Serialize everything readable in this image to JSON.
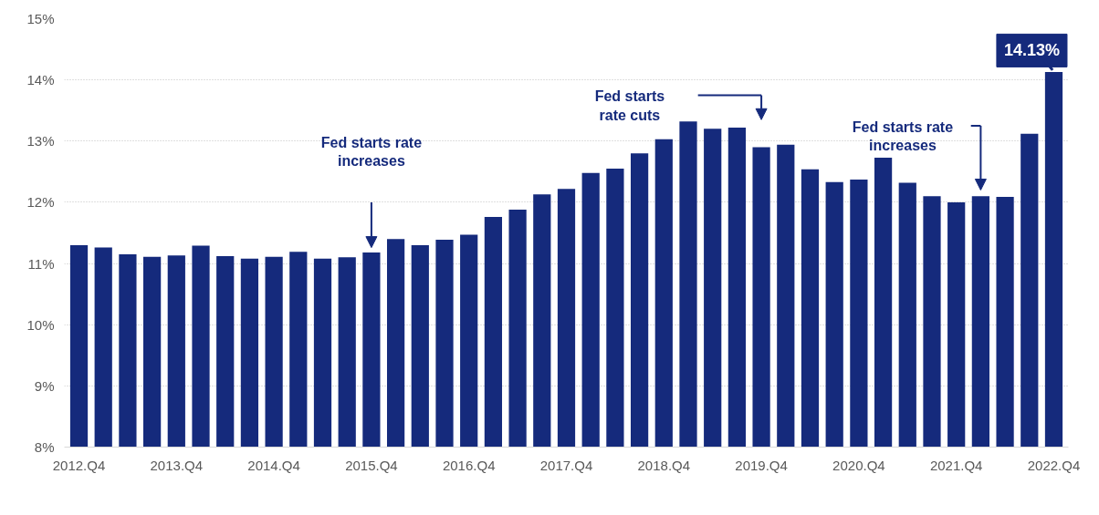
{
  "chart_data": {
    "type": "bar",
    "categories": [
      "2012.Q4",
      null,
      null,
      null,
      "2013.Q4",
      null,
      null,
      null,
      "2014.Q4",
      null,
      null,
      null,
      "2015.Q4",
      null,
      null,
      null,
      "2016.Q4",
      null,
      null,
      null,
      "2017.Q4",
      null,
      null,
      null,
      "2018.Q4",
      null,
      null,
      null,
      "2019.Q4",
      null,
      null,
      null,
      "2020.Q4",
      null,
      null,
      null,
      "2021.Q4",
      null,
      null,
      null,
      "2022.Q4"
    ],
    "values": [
      11.3,
      11.26,
      11.15,
      11.11,
      11.13,
      11.29,
      11.12,
      11.08,
      11.11,
      11.19,
      11.08,
      11.1,
      11.18,
      11.4,
      11.3,
      11.39,
      11.47,
      11.76,
      11.88,
      12.13,
      12.22,
      12.48,
      12.55,
      12.8,
      13.03,
      13.32,
      13.2,
      13.22,
      12.9,
      12.94,
      12.54,
      12.33,
      12.37,
      12.73,
      12.32,
      12.1,
      12.0,
      12.1,
      12.09,
      13.12,
      14.13
    ],
    "color": "#152a7c",
    "value_labels": [
      null,
      null,
      null,
      null,
      null,
      null,
      null,
      null,
      null,
      null,
      null,
      null,
      null,
      null,
      null,
      null,
      null,
      null,
      null,
      null,
      null,
      null,
      null,
      null,
      null,
      null,
      null,
      null,
      null,
      null,
      null,
      null,
      null,
      null,
      null,
      null,
      null,
      null,
      null,
      null,
      "14.13%"
    ],
    "ylim": [
      8,
      15
    ],
    "yticks": [
      {
        "value": 8,
        "label": "8%"
      },
      {
        "value": 9,
        "label": "9%"
      },
      {
        "value": 10,
        "label": "10%"
      },
      {
        "value": 11,
        "label": "11%"
      },
      {
        "value": 12,
        "label": "12%"
      },
      {
        "value": 13,
        "label": "13%"
      },
      {
        "value": 14,
        "label": "14%"
      },
      {
        "value": 15,
        "label": "15%"
      }
    ],
    "grid": "y",
    "annotations": [
      "Fed starts rate\nincreases",
      "Fed starts\nrate cuts",
      "Fed starts rate\nincreases"
    ]
  }
}
